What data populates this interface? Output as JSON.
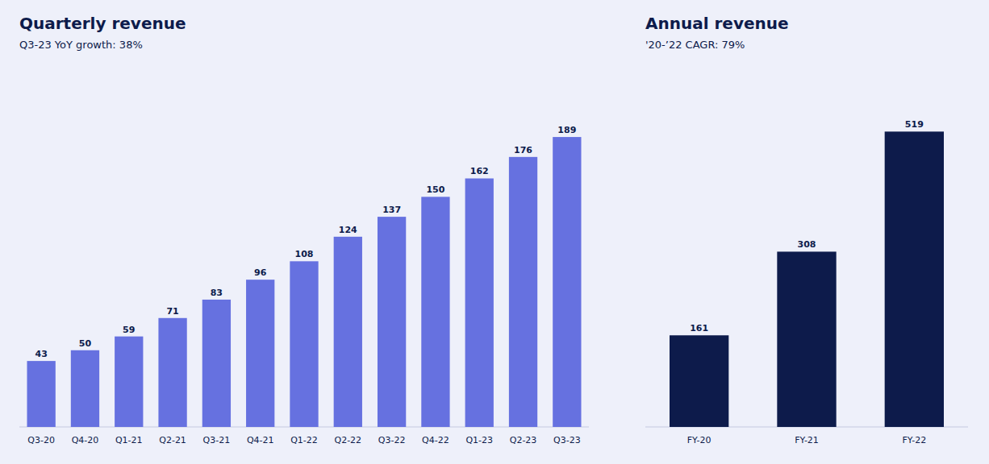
{
  "chart_data": [
    {
      "type": "bar",
      "title": "Quarterly revenue",
      "subtitle": "Q3-23 YoY growth: 38%",
      "categories": [
        "Q3-20",
        "Q4-20",
        "Q1-21",
        "Q2-21",
        "Q3-21",
        "Q4-21",
        "Q1-22",
        "Q2-22",
        "Q3-22",
        "Q4-22",
        "Q1-23",
        "Q2-23",
        "Q3-23"
      ],
      "values": [
        43,
        50,
        59,
        71,
        83,
        96,
        108,
        124,
        137,
        150,
        162,
        176,
        189
      ],
      "color": "#6671E0",
      "ylim": [
        0,
        230
      ],
      "grid": false,
      "data_labels": true,
      "tick_labels": "x"
    },
    {
      "type": "bar",
      "title": "Annual revenue",
      "subtitle": "'20-’22 CAGR: 79%",
      "categories": [
        "FY-20",
        "FY-21",
        "FY-22"
      ],
      "values": [
        161,
        308,
        519
      ],
      "color": "#0D1B4B",
      "ylim": [
        0,
        620
      ],
      "grid": false,
      "data_labels": true,
      "tick_labels": "x"
    }
  ]
}
